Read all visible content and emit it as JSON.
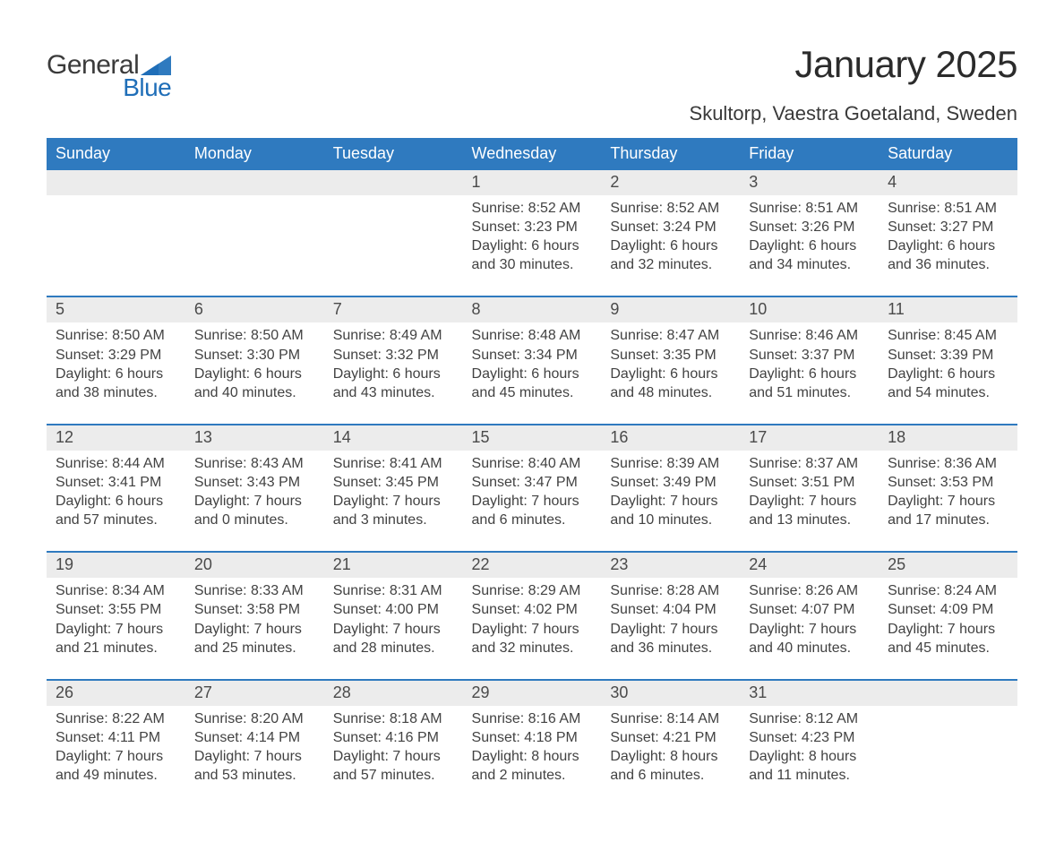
{
  "brand": {
    "top": "General",
    "bottom": "Blue"
  },
  "title": "January 2025",
  "location": "Skultorp, Vaestra Goetaland, Sweden",
  "colors": {
    "header_blue": "#2f7abf",
    "accent_blue": "#1f6eb8",
    "row_stripe": "#ececec",
    "text_dark": "#3c3c3c",
    "background": "#ffffff"
  },
  "typography": {
    "title_fontsize": 42,
    "location_fontsize": 22,
    "weekday_fontsize": 18,
    "daynum_fontsize": 18,
    "body_fontsize": 16
  },
  "weekdays": [
    "Sunday",
    "Monday",
    "Tuesday",
    "Wednesday",
    "Thursday",
    "Friday",
    "Saturday"
  ],
  "weeks": [
    [
      null,
      null,
      null,
      {
        "day": "1",
        "sunrise": "Sunrise: 8:52 AM",
        "sunset": "Sunset: 3:23 PM",
        "daylight1": "Daylight: 6 hours",
        "daylight2": "and 30 minutes."
      },
      {
        "day": "2",
        "sunrise": "Sunrise: 8:52 AM",
        "sunset": "Sunset: 3:24 PM",
        "daylight1": "Daylight: 6 hours",
        "daylight2": "and 32 minutes."
      },
      {
        "day": "3",
        "sunrise": "Sunrise: 8:51 AM",
        "sunset": "Sunset: 3:26 PM",
        "daylight1": "Daylight: 6 hours",
        "daylight2": "and 34 minutes."
      },
      {
        "day": "4",
        "sunrise": "Sunrise: 8:51 AM",
        "sunset": "Sunset: 3:27 PM",
        "daylight1": "Daylight: 6 hours",
        "daylight2": "and 36 minutes."
      }
    ],
    [
      {
        "day": "5",
        "sunrise": "Sunrise: 8:50 AM",
        "sunset": "Sunset: 3:29 PM",
        "daylight1": "Daylight: 6 hours",
        "daylight2": "and 38 minutes."
      },
      {
        "day": "6",
        "sunrise": "Sunrise: 8:50 AM",
        "sunset": "Sunset: 3:30 PM",
        "daylight1": "Daylight: 6 hours",
        "daylight2": "and 40 minutes."
      },
      {
        "day": "7",
        "sunrise": "Sunrise: 8:49 AM",
        "sunset": "Sunset: 3:32 PM",
        "daylight1": "Daylight: 6 hours",
        "daylight2": "and 43 minutes."
      },
      {
        "day": "8",
        "sunrise": "Sunrise: 8:48 AM",
        "sunset": "Sunset: 3:34 PM",
        "daylight1": "Daylight: 6 hours",
        "daylight2": "and 45 minutes."
      },
      {
        "day": "9",
        "sunrise": "Sunrise: 8:47 AM",
        "sunset": "Sunset: 3:35 PM",
        "daylight1": "Daylight: 6 hours",
        "daylight2": "and 48 minutes."
      },
      {
        "day": "10",
        "sunrise": "Sunrise: 8:46 AM",
        "sunset": "Sunset: 3:37 PM",
        "daylight1": "Daylight: 6 hours",
        "daylight2": "and 51 minutes."
      },
      {
        "day": "11",
        "sunrise": "Sunrise: 8:45 AM",
        "sunset": "Sunset: 3:39 PM",
        "daylight1": "Daylight: 6 hours",
        "daylight2": "and 54 minutes."
      }
    ],
    [
      {
        "day": "12",
        "sunrise": "Sunrise: 8:44 AM",
        "sunset": "Sunset: 3:41 PM",
        "daylight1": "Daylight: 6 hours",
        "daylight2": "and 57 minutes."
      },
      {
        "day": "13",
        "sunrise": "Sunrise: 8:43 AM",
        "sunset": "Sunset: 3:43 PM",
        "daylight1": "Daylight: 7 hours",
        "daylight2": "and 0 minutes."
      },
      {
        "day": "14",
        "sunrise": "Sunrise: 8:41 AM",
        "sunset": "Sunset: 3:45 PM",
        "daylight1": "Daylight: 7 hours",
        "daylight2": "and 3 minutes."
      },
      {
        "day": "15",
        "sunrise": "Sunrise: 8:40 AM",
        "sunset": "Sunset: 3:47 PM",
        "daylight1": "Daylight: 7 hours",
        "daylight2": "and 6 minutes."
      },
      {
        "day": "16",
        "sunrise": "Sunrise: 8:39 AM",
        "sunset": "Sunset: 3:49 PM",
        "daylight1": "Daylight: 7 hours",
        "daylight2": "and 10 minutes."
      },
      {
        "day": "17",
        "sunrise": "Sunrise: 8:37 AM",
        "sunset": "Sunset: 3:51 PM",
        "daylight1": "Daylight: 7 hours",
        "daylight2": "and 13 minutes."
      },
      {
        "day": "18",
        "sunrise": "Sunrise: 8:36 AM",
        "sunset": "Sunset: 3:53 PM",
        "daylight1": "Daylight: 7 hours",
        "daylight2": "and 17 minutes."
      }
    ],
    [
      {
        "day": "19",
        "sunrise": "Sunrise: 8:34 AM",
        "sunset": "Sunset: 3:55 PM",
        "daylight1": "Daylight: 7 hours",
        "daylight2": "and 21 minutes."
      },
      {
        "day": "20",
        "sunrise": "Sunrise: 8:33 AM",
        "sunset": "Sunset: 3:58 PM",
        "daylight1": "Daylight: 7 hours",
        "daylight2": "and 25 minutes."
      },
      {
        "day": "21",
        "sunrise": "Sunrise: 8:31 AM",
        "sunset": "Sunset: 4:00 PM",
        "daylight1": "Daylight: 7 hours",
        "daylight2": "and 28 minutes."
      },
      {
        "day": "22",
        "sunrise": "Sunrise: 8:29 AM",
        "sunset": "Sunset: 4:02 PM",
        "daylight1": "Daylight: 7 hours",
        "daylight2": "and 32 minutes."
      },
      {
        "day": "23",
        "sunrise": "Sunrise: 8:28 AM",
        "sunset": "Sunset: 4:04 PM",
        "daylight1": "Daylight: 7 hours",
        "daylight2": "and 36 minutes."
      },
      {
        "day": "24",
        "sunrise": "Sunrise: 8:26 AM",
        "sunset": "Sunset: 4:07 PM",
        "daylight1": "Daylight: 7 hours",
        "daylight2": "and 40 minutes."
      },
      {
        "day": "25",
        "sunrise": "Sunrise: 8:24 AM",
        "sunset": "Sunset: 4:09 PM",
        "daylight1": "Daylight: 7 hours",
        "daylight2": "and 45 minutes."
      }
    ],
    [
      {
        "day": "26",
        "sunrise": "Sunrise: 8:22 AM",
        "sunset": "Sunset: 4:11 PM",
        "daylight1": "Daylight: 7 hours",
        "daylight2": "and 49 minutes."
      },
      {
        "day": "27",
        "sunrise": "Sunrise: 8:20 AM",
        "sunset": "Sunset: 4:14 PM",
        "daylight1": "Daylight: 7 hours",
        "daylight2": "and 53 minutes."
      },
      {
        "day": "28",
        "sunrise": "Sunrise: 8:18 AM",
        "sunset": "Sunset: 4:16 PM",
        "daylight1": "Daylight: 7 hours",
        "daylight2": "and 57 minutes."
      },
      {
        "day": "29",
        "sunrise": "Sunrise: 8:16 AM",
        "sunset": "Sunset: 4:18 PM",
        "daylight1": "Daylight: 8 hours",
        "daylight2": "and 2 minutes."
      },
      {
        "day": "30",
        "sunrise": "Sunrise: 8:14 AM",
        "sunset": "Sunset: 4:21 PM",
        "daylight1": "Daylight: 8 hours",
        "daylight2": "and 6 minutes."
      },
      {
        "day": "31",
        "sunrise": "Sunrise: 8:12 AM",
        "sunset": "Sunset: 4:23 PM",
        "daylight1": "Daylight: 8 hours",
        "daylight2": "and 11 minutes."
      },
      null
    ]
  ]
}
